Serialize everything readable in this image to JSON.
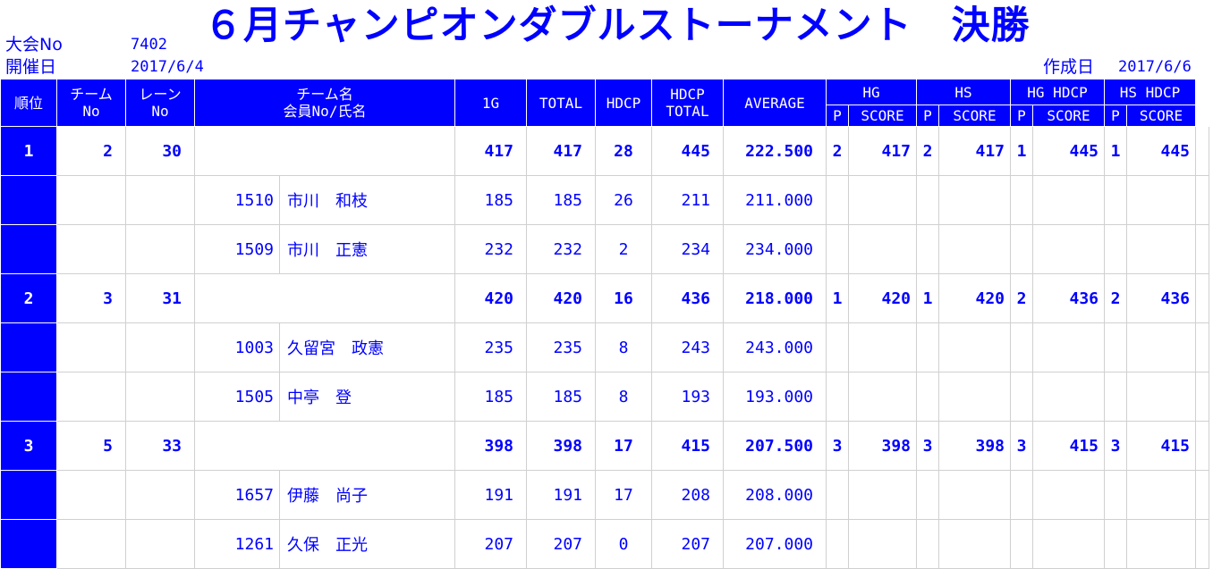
{
  "header": {
    "tournament_no_label": "大会No",
    "tournament_no": "7402",
    "date_label": "開催日",
    "date": "2017/6/4",
    "title": "６月チャンピオンダブルストーナメント　決勝",
    "created_label": "作成日",
    "created_date": "2017/6/6"
  },
  "columns": {
    "rank": "順位",
    "team_no_1": "チーム",
    "team_no_2": "No",
    "lane_no_1": "レーン",
    "lane_no_2": "No",
    "team_name_1": "チーム名",
    "team_name_2": "会員No/氏名",
    "g1": "1G",
    "total": "TOTAL",
    "hdcp": "HDCP",
    "hdcp_total_1": "HDCP",
    "hdcp_total_2": "TOTAL",
    "average": "AVERAGE",
    "hg": "HG",
    "hs": "HS",
    "hg_hdcp": "HG HDCP",
    "hs_hdcp": "HS HDCP",
    "p": "P",
    "score": "SCORE"
  },
  "teams": [
    {
      "rank": "1",
      "team_no": "2",
      "lane": "30",
      "g1": "417",
      "total": "417",
      "hdcp": "28",
      "hdcp_total": "445",
      "average": "222.500",
      "hg_p": "2",
      "hg_score": "417",
      "hs_p": "2",
      "hs_score": "417",
      "hgh_p": "1",
      "hgh_score": "445",
      "hsh_p": "1",
      "hsh_score": "445",
      "members": [
        {
          "no": "1510",
          "name": "市川　和枝",
          "g1": "185",
          "total": "185",
          "hdcp": "26",
          "hdcp_total": "211",
          "average": "211.000"
        },
        {
          "no": "1509",
          "name": "市川　正憲",
          "g1": "232",
          "total": "232",
          "hdcp": "2",
          "hdcp_total": "234",
          "average": "234.000"
        }
      ]
    },
    {
      "rank": "2",
      "team_no": "3",
      "lane": "31",
      "g1": "420",
      "total": "420",
      "hdcp": "16",
      "hdcp_total": "436",
      "average": "218.000",
      "hg_p": "1",
      "hg_score": "420",
      "hs_p": "1",
      "hs_score": "420",
      "hgh_p": "2",
      "hgh_score": "436",
      "hsh_p": "2",
      "hsh_score": "436",
      "members": [
        {
          "no": "1003",
          "name": "久留宮　政憲",
          "g1": "235",
          "total": "235",
          "hdcp": "8",
          "hdcp_total": "243",
          "average": "243.000"
        },
        {
          "no": "1505",
          "name": "中亭　登",
          "g1": "185",
          "total": "185",
          "hdcp": "8",
          "hdcp_total": "193",
          "average": "193.000"
        }
      ]
    },
    {
      "rank": "3",
      "team_no": "5",
      "lane": "33",
      "g1": "398",
      "total": "398",
      "hdcp": "17",
      "hdcp_total": "415",
      "average": "207.500",
      "hg_p": "3",
      "hg_score": "398",
      "hs_p": "3",
      "hs_score": "398",
      "hgh_p": "3",
      "hgh_score": "415",
      "hsh_p": "3",
      "hsh_score": "415",
      "members": [
        {
          "no": "1657",
          "name": "伊藤　尚子",
          "g1": "191",
          "total": "191",
          "hdcp": "17",
          "hdcp_total": "208",
          "average": "208.000"
        },
        {
          "no": "1261",
          "name": "久保　正光",
          "g1": "207",
          "total": "207",
          "hdcp": "0",
          "hdcp_total": "207",
          "average": "207.000"
        }
      ]
    }
  ]
}
